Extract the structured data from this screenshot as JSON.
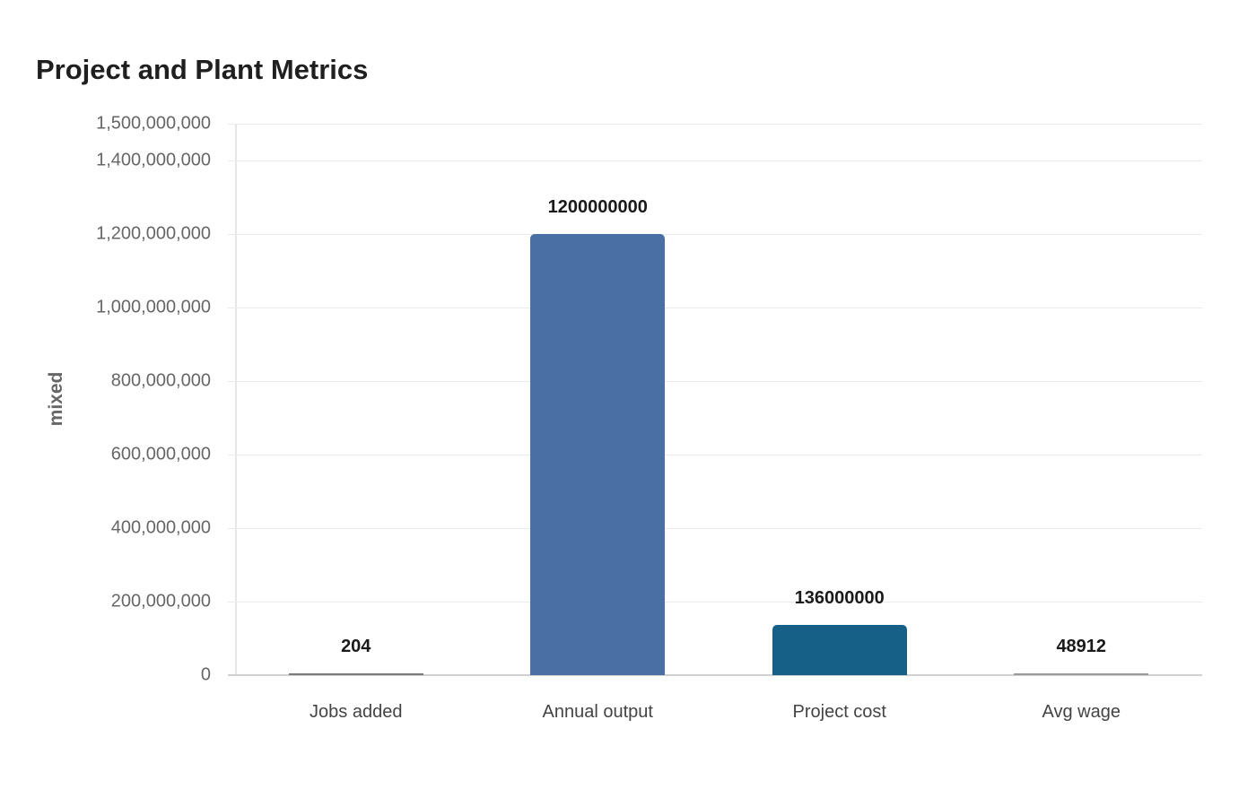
{
  "chart_data": {
    "type": "bar",
    "title": "Project and Plant Metrics",
    "xlabel": "",
    "ylabel": "mixed",
    "categories": [
      "Jobs added",
      "Annual output",
      "Project cost",
      "Avg wage"
    ],
    "values": [
      204,
      1200000000,
      136000000,
      48912
    ],
    "value_labels": [
      "204",
      "1200000000",
      "136000000",
      "48912"
    ],
    "colors": [
      "#7a7a7a",
      "#4a6fa5",
      "#166088",
      "#9a9a9a"
    ],
    "ylim": [
      0,
      1500000000
    ],
    "yticks": [
      0,
      200000000,
      400000000,
      600000000,
      800000000,
      1000000000,
      1200000000,
      1400000000,
      1500000000
    ],
    "ytick_labels": [
      "0",
      "200,000,000",
      "400,000,000",
      "600,000,000",
      "800,000,000",
      "1,000,000,000",
      "1,200,000,000",
      "1,400,000,000",
      "1,500,000,000"
    ],
    "grid": true,
    "legend": null
  }
}
